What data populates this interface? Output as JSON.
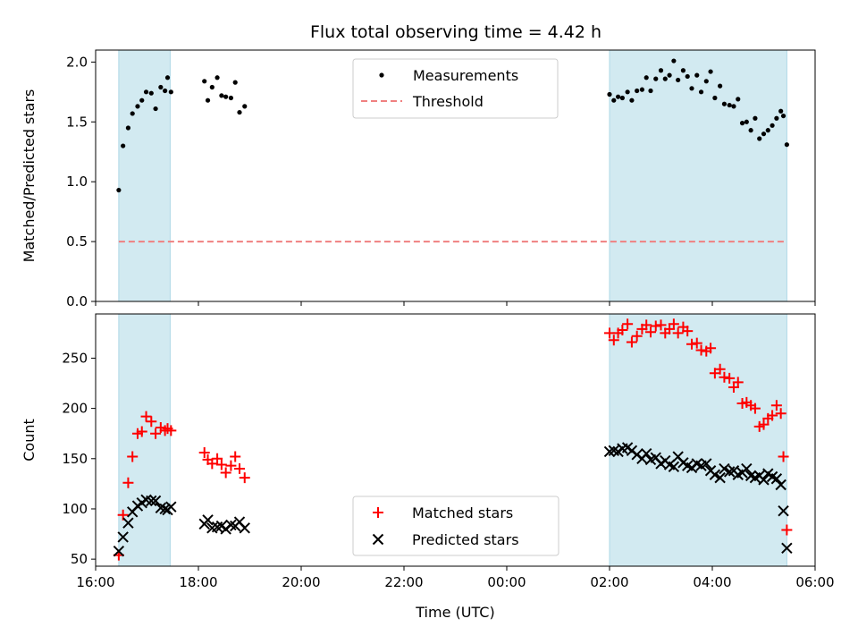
{
  "title": "Flux total observing time = 4.42 h",
  "colors": {
    "measurement": "#000000",
    "threshold": "#f08080",
    "matched": "#ff0000",
    "predicted": "#000000",
    "span": "#add8e6"
  },
  "chart_data": [
    {
      "type": "scatter",
      "ylabel": "Matched/Predicted stars",
      "ylim": [
        0,
        2.1
      ],
      "yticks": [
        "0.0",
        "0.5",
        "1.0",
        "1.5",
        "2.0"
      ],
      "xlim": [
        "16:00",
        "06:00"
      ],
      "shaded_spans": [
        [
          "16:27",
          "17:27"
        ],
        [
          "02:00",
          "05:27"
        ]
      ],
      "legend": {
        "position": "upper center",
        "entries": [
          "Measurements",
          "Threshold"
        ]
      },
      "threshold": {
        "name": "Threshold",
        "y": 0.5,
        "x_range": [
          "16:27",
          "05:27"
        ],
        "style": "dashed"
      },
      "series": [
        {
          "name": "Measurements",
          "marker": "dot",
          "points": [
            [
              "16:27",
              0.93
            ],
            [
              "16:32",
              1.3
            ],
            [
              "16:38",
              1.45
            ],
            [
              "16:43",
              1.57
            ],
            [
              "16:49",
              1.63
            ],
            [
              "16:54",
              1.68
            ],
            [
              "16:59",
              1.75
            ],
            [
              "17:05",
              1.74
            ],
            [
              "17:10",
              1.61
            ],
            [
              "17:16",
              1.79
            ],
            [
              "17:21",
              1.76
            ],
            [
              "17:24",
              1.87
            ],
            [
              "17:28",
              1.75
            ],
            [
              "18:07",
              1.84
            ],
            [
              "18:11",
              1.68
            ],
            [
              "18:16",
              1.79
            ],
            [
              "18:22",
              1.87
            ],
            [
              "18:27",
              1.72
            ],
            [
              "18:32",
              1.71
            ],
            [
              "18:38",
              1.7
            ],
            [
              "18:43",
              1.83
            ],
            [
              "18:48",
              1.58
            ],
            [
              "18:54",
              1.63
            ],
            [
              "02:00",
              1.73
            ],
            [
              "02:05",
              1.68
            ],
            [
              "02:10",
              1.71
            ],
            [
              "02:15",
              1.7
            ],
            [
              "02:21",
              1.75
            ],
            [
              "02:26",
              1.68
            ],
            [
              "02:32",
              1.76
            ],
            [
              "02:38",
              1.77
            ],
            [
              "02:43",
              1.87
            ],
            [
              "02:48",
              1.76
            ],
            [
              "02:54",
              1.86
            ],
            [
              "03:00",
              1.93
            ],
            [
              "03:05",
              1.86
            ],
            [
              "03:10",
              1.89
            ],
            [
              "03:15",
              2.01
            ],
            [
              "03:20",
              1.85
            ],
            [
              "03:26",
              1.93
            ],
            [
              "03:31",
              1.88
            ],
            [
              "03:36",
              1.78
            ],
            [
              "03:42",
              1.89
            ],
            [
              "03:47",
              1.75
            ],
            [
              "03:53",
              1.84
            ],
            [
              "03:58",
              1.92
            ],
            [
              "04:03",
              1.7
            ],
            [
              "04:09",
              1.8
            ],
            [
              "04:14",
              1.65
            ],
            [
              "04:20",
              1.64
            ],
            [
              "04:25",
              1.63
            ],
            [
              "04:30",
              1.69
            ],
            [
              "04:35",
              1.49
            ],
            [
              "04:40",
              1.5
            ],
            [
              "04:45",
              1.43
            ],
            [
              "04:50",
              1.53
            ],
            [
              "04:55",
              1.36
            ],
            [
              "05:00",
              1.4
            ],
            [
              "05:05",
              1.43
            ],
            [
              "05:10",
              1.47
            ],
            [
              "05:15",
              1.53
            ],
            [
              "05:20",
              1.59
            ],
            [
              "05:23",
              1.55
            ],
            [
              "05:27",
              1.31
            ]
          ]
        }
      ]
    },
    {
      "type": "scatter",
      "ylabel": "Count",
      "xlabel": "Time (UTC)",
      "ylim": [
        43,
        294
      ],
      "yticks": [
        "50",
        "100",
        "150",
        "200",
        "250"
      ],
      "xlim": [
        "16:00",
        "06:00"
      ],
      "xticks": [
        "16:00",
        "18:00",
        "20:00",
        "22:00",
        "00:00",
        "02:00",
        "04:00",
        "06:00"
      ],
      "shaded_spans": [
        [
          "16:27",
          "17:27"
        ],
        [
          "02:00",
          "05:27"
        ]
      ],
      "legend": {
        "position": "lower center",
        "entries": [
          "Matched stars",
          "Predicted stars"
        ]
      },
      "series": [
        {
          "name": "Matched stars",
          "marker": "+",
          "points": [
            [
              "16:27",
              54
            ],
            [
              "16:32",
              94
            ],
            [
              "16:38",
              126
            ],
            [
              "16:43",
              152
            ],
            [
              "16:49",
              175
            ],
            [
              "16:54",
              177
            ],
            [
              "16:59",
              192
            ],
            [
              "17:05",
              187
            ],
            [
              "17:10",
              175
            ],
            [
              "17:16",
              181
            ],
            [
              "17:21",
              178
            ],
            [
              "17:24",
              180
            ],
            [
              "17:28",
              178
            ],
            [
              "18:07",
              156
            ],
            [
              "18:11",
              149
            ],
            [
              "18:16",
              145
            ],
            [
              "18:22",
              150
            ],
            [
              "18:27",
              144
            ],
            [
              "18:32",
              136
            ],
            [
              "18:38",
              143
            ],
            [
              "18:43",
              152
            ],
            [
              "18:48",
              140
            ],
            [
              "18:54",
              131
            ],
            [
              "02:00",
              275
            ],
            [
              "02:05",
              268
            ],
            [
              "02:10",
              275
            ],
            [
              "02:15",
              278
            ],
            [
              "02:21",
              284
            ],
            [
              "02:26",
              266
            ],
            [
              "02:32",
              272
            ],
            [
              "02:38",
              279
            ],
            [
              "02:43",
              283
            ],
            [
              "02:48",
              276
            ],
            [
              "02:54",
              282
            ],
            [
              "03:00",
              283
            ],
            [
              "03:05",
              275
            ],
            [
              "03:10",
              279
            ],
            [
              "03:15",
              284
            ],
            [
              "03:20",
              275
            ],
            [
              "03:26",
              281
            ],
            [
              "03:31",
              277
            ],
            [
              "03:36",
              264
            ],
            [
              "03:42",
              265
            ],
            [
              "03:47",
              258
            ],
            [
              "03:53",
              257
            ],
            [
              "03:58",
              260
            ],
            [
              "04:03",
              235
            ],
            [
              "04:09",
              239
            ],
            [
              "04:14",
              231
            ],
            [
              "04:20",
              230
            ],
            [
              "04:25",
              221
            ],
            [
              "04:30",
              226
            ],
            [
              "04:35",
              205
            ],
            [
              "04:40",
              206
            ],
            [
              "04:45",
              203
            ],
            [
              "04:50",
              200
            ],
            [
              "04:55",
              182
            ],
            [
              "05:00",
              184
            ],
            [
              "05:05",
              190
            ],
            [
              "05:10",
              193
            ],
            [
              "05:15",
              203
            ],
            [
              "05:20",
              195
            ],
            [
              "05:23",
              152
            ],
            [
              "05:27",
              79
            ]
          ]
        },
        {
          "name": "Predicted stars",
          "marker": "x",
          "points": [
            [
              "16:27",
              58
            ],
            [
              "16:32",
              72
            ],
            [
              "16:38",
              86
            ],
            [
              "16:43",
              97
            ],
            [
              "16:49",
              103
            ],
            [
              "16:54",
              106
            ],
            [
              "16:59",
              109
            ],
            [
              "17:05",
              108
            ],
            [
              "17:10",
              108
            ],
            [
              "17:16",
              101
            ],
            [
              "17:21",
              100
            ],
            [
              "17:24",
              99
            ],
            [
              "17:28",
              102
            ],
            [
              "18:07",
              85
            ],
            [
              "18:11",
              89
            ],
            [
              "18:16",
              81
            ],
            [
              "18:22",
              82
            ],
            [
              "18:27",
              83
            ],
            [
              "18:32",
              80
            ],
            [
              "18:38",
              84
            ],
            [
              "18:43",
              83
            ],
            [
              "18:48",
              87
            ],
            [
              "18:54",
              81
            ],
            [
              "02:00",
              157
            ],
            [
              "02:05",
              158
            ],
            [
              "02:10",
              157
            ],
            [
              "02:15",
              160
            ],
            [
              "02:21",
              161
            ],
            [
              "02:26",
              158
            ],
            [
              "02:32",
              154
            ],
            [
              "02:38",
              150
            ],
            [
              "02:43",
              155
            ],
            [
              "02:48",
              149
            ],
            [
              "02:54",
              151
            ],
            [
              "03:00",
              145
            ],
            [
              "03:05",
              148
            ],
            [
              "03:10",
              144
            ],
            [
              "03:15",
              142
            ],
            [
              "03:20",
              152
            ],
            [
              "03:26",
              146
            ],
            [
              "03:31",
              143
            ],
            [
              "03:36",
              141
            ],
            [
              "03:42",
              145
            ],
            [
              "03:47",
              143
            ],
            [
              "03:53",
              145
            ],
            [
              "03:58",
              138
            ],
            [
              "04:03",
              134
            ],
            [
              "04:09",
              131
            ],
            [
              "04:14",
              140
            ],
            [
              "04:20",
              137
            ],
            [
              "04:25",
              138
            ],
            [
              "04:30",
              134
            ],
            [
              "04:35",
              136
            ],
            [
              "04:40",
              140
            ],
            [
              "04:45",
              133
            ],
            [
              "04:50",
              131
            ],
            [
              "04:55",
              133
            ],
            [
              "05:00",
              129
            ],
            [
              "05:05",
              135
            ],
            [
              "05:10",
              132
            ],
            [
              "05:15",
              130
            ],
            [
              "05:20",
              124
            ],
            [
              "05:23",
              98
            ],
            [
              "05:27",
              61
            ]
          ]
        }
      ]
    }
  ]
}
